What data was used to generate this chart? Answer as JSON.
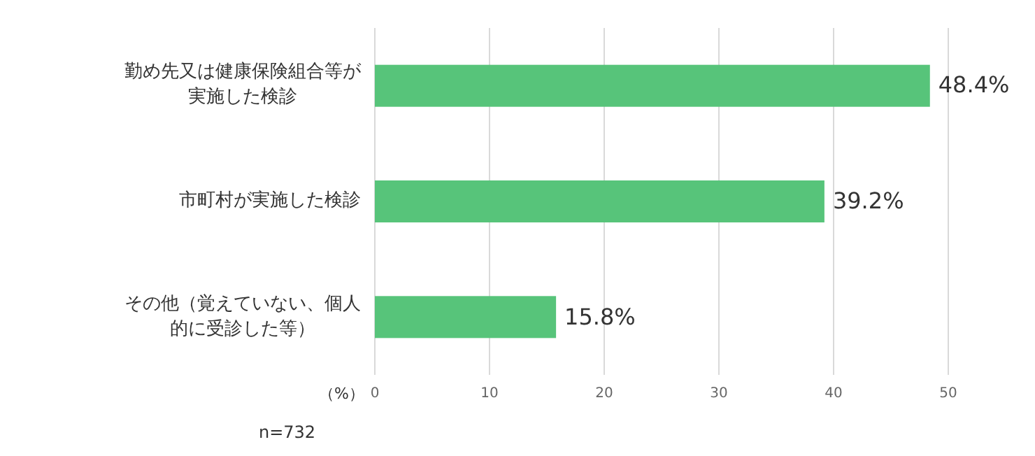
{
  "chart_data": {
    "type": "bar",
    "orientation": "horizontal",
    "categories": [
      "勤め先又は健康保険組合等が実施した検診",
      "市町村が実施した検診",
      "その他（覚えていない、個人的に受診した等）"
    ],
    "values": [
      48.4,
      39.2,
      15.8
    ],
    "value_labels": [
      "48.4%",
      "39.2%",
      "15.8%"
    ],
    "color": "#57c47a",
    "xlim": [
      0,
      50
    ],
    "xticks": [
      0,
      10,
      20,
      30,
      40,
      50
    ],
    "grid": "x",
    "xlabel": "（%）",
    "annotations": [
      "n=732"
    ]
  }
}
